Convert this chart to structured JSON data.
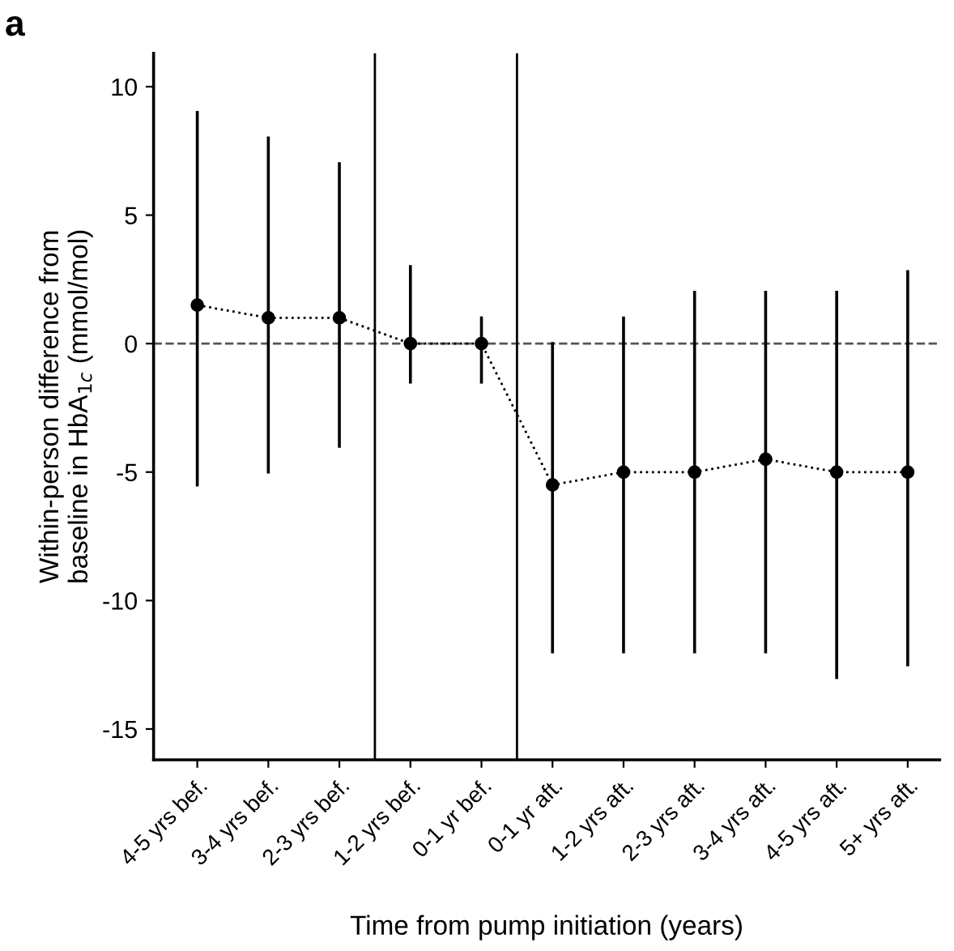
{
  "chart_data": {
    "type": "line",
    "title": "a",
    "xlabel": "Time from pump initiation (years)",
    "ylabel": "Within-person difference from\nbaseline in HbA$_{1c}$ (mmol/mol)",
    "categories": [
      "4-5 yrs bef.",
      "3-4 yrs bef.",
      "2-3 yrs bef.",
      "1-2 yrs bef.",
      "0-1 yr bef.",
      "0-1 yr aft.",
      "1-2 yrs aft.",
      "2-3 yrs aft.",
      "3-4 yrs aft.",
      "4-5 yrs aft.",
      "5+ yrs aft."
    ],
    "series": [
      {
        "color": "#000000",
        "values": [
          1.5,
          1,
          1,
          0,
          0,
          -5.5,
          -5,
          -5,
          -4.5,
          -5,
          -5
        ],
        "errors": [
          [
            -5.5,
            9
          ],
          [
            -5,
            8
          ],
          [
            -4,
            7
          ],
          [
            -1.5,
            3
          ],
          [
            -1.5,
            1
          ],
          [
            -12,
            0
          ],
          [
            -12,
            1
          ],
          [
            -12,
            2
          ],
          [
            -12,
            2
          ],
          [
            -13,
            2
          ],
          [
            -12.5,
            2.8
          ]
        ]
      }
    ],
    "marker": "circle",
    "line_style": "dotted",
    "grid": false,
    "legend": false,
    "ylim": [
      -16.2,
      11.3
    ],
    "yticks": [
      -15,
      -10,
      -5,
      0,
      5,
      10
    ],
    "ref_lines": [
      {
        "axis": "y",
        "value": 0,
        "color": "#555555",
        "line_style": "dashed"
      }
    ]
  }
}
